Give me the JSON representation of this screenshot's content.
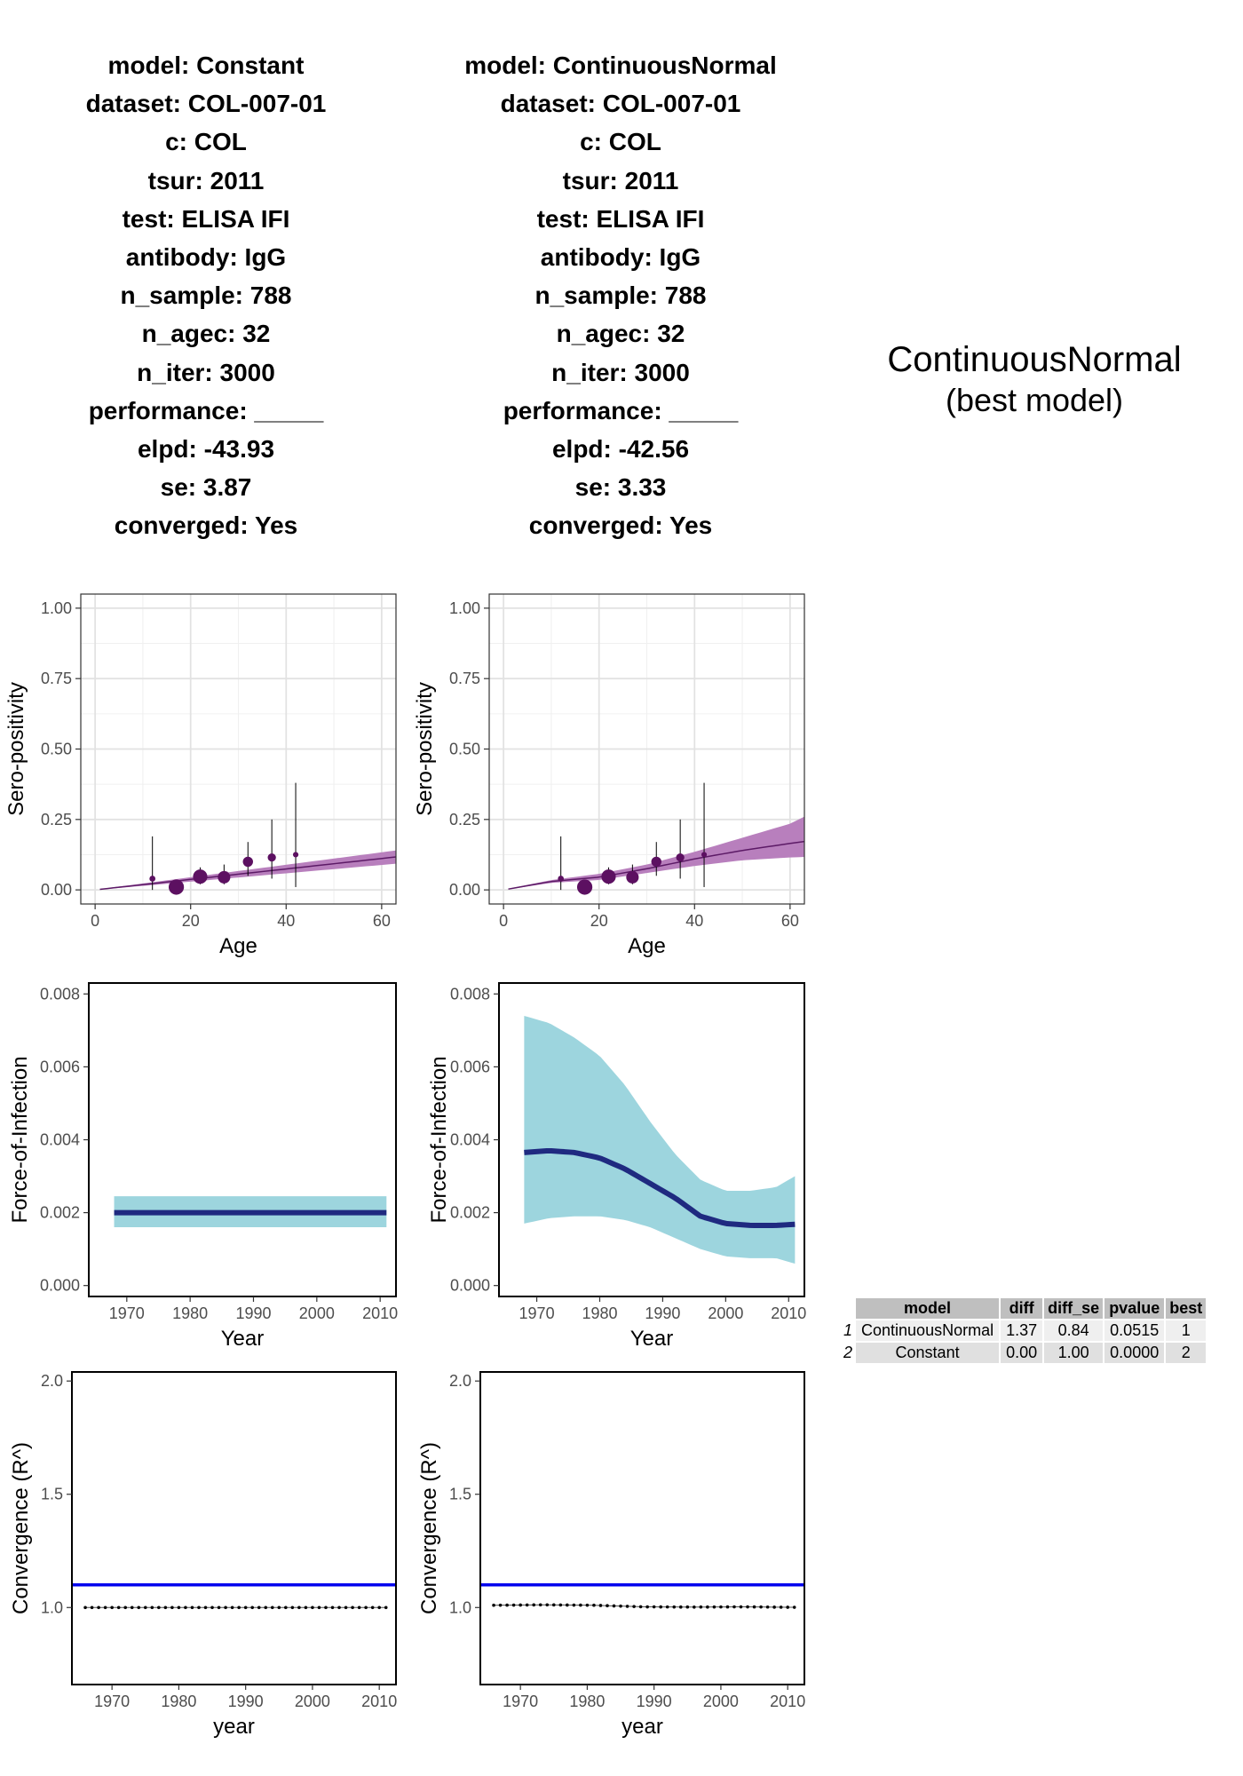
{
  "models": [
    {
      "info": [
        "model: Constant",
        "dataset: COL-007-01",
        "c: COL",
        "tsur: 2011",
        "test: ELISA IFI",
        "antibody: IgG",
        "n_sample: 788",
        "n_agec: 32",
        "n_iter: 3000",
        "performance: _____",
        "elpd: -43.93",
        "se: 3.87",
        "converged: Yes"
      ]
    },
    {
      "info": [
        "model: ContinuousNormal",
        "dataset: COL-007-01",
        "c: COL",
        "tsur: 2011",
        "test: ELISA IFI",
        "antibody: IgG",
        "n_sample: 788",
        "n_agec: 32",
        "n_iter: 3000",
        "performance: _____",
        "elpd: -42.56",
        "se: 3.33",
        "converged: Yes"
      ]
    }
  ],
  "best_model": {
    "name": "ContinuousNormal",
    "label": "(best model)"
  },
  "comparison_table": {
    "headers": [
      "model",
      "diff",
      "diff_se",
      "pvalue",
      "best"
    ],
    "rows": [
      {
        "index": "1",
        "cells": [
          "ContinuousNormal",
          "1.37",
          "0.84",
          "0.0515",
          "1"
        ]
      },
      {
        "index": "2",
        "cells": [
          "Constant",
          "0.00",
          "1.00",
          "0.0000",
          "2"
        ]
      }
    ]
  },
  "colors": {
    "ribbon_sero": "#b87fbd",
    "fit_sero": "#5c1a66",
    "points": "#5c1061",
    "ribbon_foi": "#9dd5de",
    "foi_line": "#1f2a80",
    "rhat_threshold": "#0000ee",
    "rhat_points": "#000000"
  },
  "chart_data": [
    {
      "type": "scatter",
      "title": "",
      "xlabel": "Age",
      "ylabel": "Sero-positivity",
      "xlim": [
        -3,
        63
      ],
      "ylim": [
        -0.05,
        1.05
      ],
      "xticks": [
        "0",
        "20",
        "40",
        "60"
      ],
      "yticks": [
        "0.00",
        "0.25",
        "0.50",
        "0.75",
        "1.00"
      ],
      "points": [
        {
          "age": 12,
          "y": 0.04,
          "lo": 0.0,
          "hi": 0.19,
          "n": 8
        },
        {
          "age": 17,
          "y": 0.01,
          "lo": 0.0,
          "hi": 0.03,
          "n": 190
        },
        {
          "age": 22,
          "y": 0.047,
          "lo": 0.02,
          "hi": 0.08,
          "n": 160
        },
        {
          "age": 27,
          "y": 0.045,
          "lo": 0.02,
          "hi": 0.09,
          "n": 110
        },
        {
          "age": 32,
          "y": 0.1,
          "lo": 0.05,
          "hi": 0.17,
          "n": 60
        },
        {
          "age": 37,
          "y": 0.115,
          "lo": 0.04,
          "hi": 0.25,
          "n": 30
        },
        {
          "age": 42,
          "y": 0.125,
          "lo": 0.01,
          "hi": 0.38,
          "n": 5
        }
      ],
      "fit": {
        "age": [
          1,
          63
        ],
        "mid": [
          0.002,
          0.117
        ],
        "lo": [
          0.001,
          0.093
        ],
        "hi": [
          0.003,
          0.14
        ]
      }
    },
    {
      "type": "scatter",
      "title": "",
      "xlabel": "Age",
      "ylabel": "Sero-positivity",
      "xlim": [
        -3,
        63
      ],
      "ylim": [
        -0.05,
        1.05
      ],
      "xticks": [
        "0",
        "20",
        "40",
        "60"
      ],
      "yticks": [
        "0.00",
        "0.25",
        "0.50",
        "0.75",
        "1.00"
      ],
      "points": [
        {
          "age": 12,
          "y": 0.04,
          "lo": 0.0,
          "hi": 0.19,
          "n": 8
        },
        {
          "age": 17,
          "y": 0.01,
          "lo": 0.0,
          "hi": 0.03,
          "n": 190
        },
        {
          "age": 22,
          "y": 0.047,
          "lo": 0.02,
          "hi": 0.08,
          "n": 160
        },
        {
          "age": 27,
          "y": 0.045,
          "lo": 0.02,
          "hi": 0.09,
          "n": 110
        },
        {
          "age": 32,
          "y": 0.1,
          "lo": 0.05,
          "hi": 0.17,
          "n": 60
        },
        {
          "age": 37,
          "y": 0.115,
          "lo": 0.04,
          "hi": 0.25,
          "n": 30
        },
        {
          "age": 42,
          "y": 0.125,
          "lo": 0.01,
          "hi": 0.38,
          "n": 5
        }
      ],
      "fit": {
        "age": [
          1,
          10,
          20,
          30,
          40,
          50,
          60,
          63
        ],
        "mid": [
          0.003,
          0.03,
          0.045,
          0.075,
          0.11,
          0.14,
          0.165,
          0.172
        ],
        "lo": [
          0.002,
          0.025,
          0.035,
          0.06,
          0.085,
          0.105,
          0.115,
          0.117
        ],
        "hi": [
          0.004,
          0.035,
          0.057,
          0.09,
          0.135,
          0.185,
          0.235,
          0.26
        ]
      }
    },
    {
      "type": "area",
      "title": "",
      "xlabel": "Year",
      "ylabel": "Force-of-Infection",
      "xlim": [
        1964,
        2012.5
      ],
      "ylim": [
        -0.0003,
        0.0083
      ],
      "xticks": [
        "1970",
        "1980",
        "1990",
        "2000",
        "2010"
      ],
      "yticks": [
        "0.000",
        "0.002",
        "0.004",
        "0.006",
        "0.008"
      ],
      "year": [
        1968,
        2011
      ],
      "mid": [
        0.002,
        0.002
      ],
      "lo": [
        0.0016,
        0.0016
      ],
      "hi": [
        0.00245,
        0.00245
      ]
    },
    {
      "type": "area",
      "title": "",
      "xlabel": "Year",
      "ylabel": "Force-of-Infection",
      "xlim": [
        1964,
        2012.5
      ],
      "ylim": [
        -0.0003,
        0.0083
      ],
      "xticks": [
        "1970",
        "1980",
        "1990",
        "2000",
        "2010"
      ],
      "yticks": [
        "0.000",
        "0.002",
        "0.004",
        "0.006",
        "0.008"
      ],
      "year": [
        1968,
        1972,
        1976,
        1980,
        1984,
        1988,
        1992,
        1996,
        2000,
        2004,
        2008,
        2011
      ],
      "mid": [
        0.00365,
        0.0037,
        0.00365,
        0.0035,
        0.0032,
        0.0028,
        0.0024,
        0.0019,
        0.0017,
        0.00165,
        0.00165,
        0.00168
      ],
      "lo": [
        0.0017,
        0.00185,
        0.0019,
        0.0019,
        0.0018,
        0.0016,
        0.0013,
        0.001,
        0.0008,
        0.00075,
        0.00075,
        0.0006
      ],
      "hi": [
        0.0074,
        0.0072,
        0.0068,
        0.0063,
        0.0055,
        0.0045,
        0.0036,
        0.0029,
        0.0026,
        0.0026,
        0.0027,
        0.003
      ]
    },
    {
      "type": "scatter",
      "title": "",
      "xlabel": "year",
      "ylabel": "Convergence (R^)",
      "xlim": [
        1964,
        2012.5
      ],
      "ylim": [
        0.66,
        2.04
      ],
      "xticks": [
        "1970",
        "1980",
        "1990",
        "2000",
        "2010"
      ],
      "yticks": [
        "1.0",
        "1.5",
        "2.0"
      ],
      "threshold": 1.1,
      "year_range": [
        1966,
        2011
      ],
      "rhat": [
        1.0,
        1.0
      ]
    },
    {
      "type": "scatter",
      "title": "",
      "xlabel": "year",
      "ylabel": "Convergence (R^)",
      "xlim": [
        1964,
        2012.5
      ],
      "ylim": [
        0.66,
        2.04
      ],
      "xticks": [
        "1970",
        "1980",
        "1990",
        "2000",
        "2010"
      ],
      "yticks": [
        "1.0",
        "1.5",
        "2.0"
      ],
      "threshold": 1.1,
      "year_range": [
        1966,
        2011
      ],
      "rhat": [
        1.01,
        1.012,
        1.01,
        1.003,
        1.002,
        1.003,
        1.001
      ]
    }
  ]
}
